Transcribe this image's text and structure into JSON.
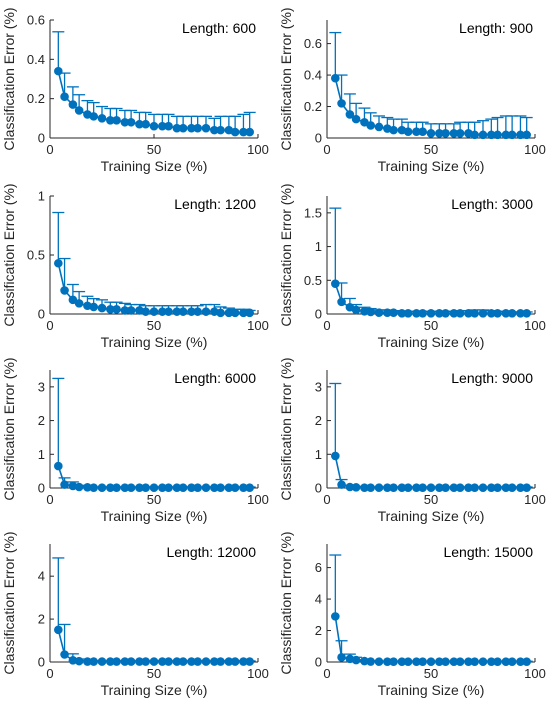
{
  "colors": {
    "series": "#0072BD",
    "axis": "#262626",
    "background": "#ffffff"
  },
  "chart_data": [
    {
      "type": "line",
      "title": "Length: 600",
      "xlabel": "Training Size (%)",
      "ylabel": "Classification Error (%)",
      "xlim": [
        0,
        100
      ],
      "ylim": [
        0,
        0.6
      ],
      "xticks": [
        0,
        50,
        100
      ],
      "xtick_labels": [
        "0",
        "50",
        "100"
      ],
      "yticks": [
        0,
        0.2,
        0.4,
        0.6
      ],
      "ytick_labels": [
        "0",
        "0.2",
        "0.4",
        "0.6"
      ],
      "grid": false,
      "x": [
        4,
        7,
        11,
        14,
        18,
        21,
        25,
        29,
        32,
        36,
        39,
        43,
        46,
        50,
        54,
        57,
        61,
        64,
        68,
        71,
        75,
        79,
        82,
        86,
        89,
        93,
        96
      ],
      "y": [
        0.34,
        0.21,
        0.17,
        0.14,
        0.12,
        0.11,
        0.1,
        0.09,
        0.09,
        0.08,
        0.08,
        0.07,
        0.07,
        0.06,
        0.06,
        0.06,
        0.05,
        0.05,
        0.05,
        0.05,
        0.05,
        0.04,
        0.04,
        0.04,
        0.03,
        0.03,
        0.03
      ],
      "error": [
        0.2,
        0.12,
        0.09,
        0.08,
        0.07,
        0.07,
        0.06,
        0.06,
        0.06,
        0.06,
        0.06,
        0.06,
        0.06,
        0.06,
        0.06,
        0.06,
        0.06,
        0.06,
        0.06,
        0.06,
        0.06,
        0.06,
        0.07,
        0.07,
        0.08,
        0.09,
        0.1
      ]
    },
    {
      "type": "line",
      "title": "Length: 900",
      "xlabel": "Training Size (%)",
      "ylabel": "Classification Error (%)",
      "xlim": [
        0,
        100
      ],
      "ylim": [
        0,
        0.75
      ],
      "xticks": [
        0,
        50,
        100
      ],
      "xtick_labels": [
        "0",
        "50",
        "100"
      ],
      "yticks": [
        0,
        0.2,
        0.4,
        0.6
      ],
      "ytick_labels": [
        "0",
        "0.2",
        "0.4",
        "0.6"
      ],
      "grid": false,
      "x": [
        4,
        7,
        11,
        14,
        18,
        21,
        25,
        29,
        32,
        36,
        39,
        43,
        46,
        50,
        54,
        57,
        61,
        64,
        68,
        71,
        75,
        79,
        82,
        86,
        89,
        93,
        96
      ],
      "y": [
        0.38,
        0.22,
        0.15,
        0.12,
        0.1,
        0.08,
        0.07,
        0.06,
        0.05,
        0.05,
        0.04,
        0.04,
        0.04,
        0.03,
        0.03,
        0.03,
        0.03,
        0.03,
        0.03,
        0.02,
        0.02,
        0.02,
        0.02,
        0.02,
        0.02,
        0.02,
        0.02
      ],
      "error": [
        0.29,
        0.18,
        0.13,
        0.1,
        0.09,
        0.08,
        0.07,
        0.07,
        0.07,
        0.07,
        0.06,
        0.06,
        0.06,
        0.06,
        0.06,
        0.06,
        0.06,
        0.07,
        0.07,
        0.08,
        0.09,
        0.1,
        0.11,
        0.12,
        0.12,
        0.12,
        0.11
      ]
    },
    {
      "type": "line",
      "title": "Length: 1200",
      "xlabel": "Training Size (%)",
      "ylabel": "Classification Error (%)",
      "xlim": [
        0,
        100
      ],
      "ylim": [
        0,
        1
      ],
      "xticks": [
        0,
        50,
        100
      ],
      "xtick_labels": [
        "0",
        "50",
        "100"
      ],
      "yticks": [
        0,
        0.5,
        1
      ],
      "ytick_labels": [
        "0",
        "0.5",
        "1"
      ],
      "grid": false,
      "x": [
        4,
        7,
        11,
        14,
        18,
        21,
        25,
        29,
        32,
        36,
        39,
        43,
        46,
        50,
        54,
        57,
        61,
        64,
        68,
        71,
        75,
        79,
        82,
        86,
        89,
        93,
        96
      ],
      "y": [
        0.43,
        0.2,
        0.12,
        0.09,
        0.07,
        0.06,
        0.05,
        0.04,
        0.04,
        0.03,
        0.03,
        0.03,
        0.02,
        0.02,
        0.02,
        0.02,
        0.02,
        0.02,
        0.02,
        0.02,
        0.02,
        0.02,
        0.01,
        0.01,
        0.01,
        0.01,
        0.01
      ],
      "error": [
        0.43,
        0.27,
        0.13,
        0.1,
        0.08,
        0.07,
        0.07,
        0.06,
        0.06,
        0.06,
        0.05,
        0.05,
        0.05,
        0.05,
        0.05,
        0.05,
        0.05,
        0.05,
        0.05,
        0.05,
        0.06,
        0.06,
        0.05,
        0.04,
        0.03,
        0.03,
        0.02
      ]
    },
    {
      "type": "line",
      "title": "Length: 3000",
      "xlabel": "Training Size (%)",
      "ylabel": "Classification Error (%)",
      "xlim": [
        0,
        100
      ],
      "ylim": [
        0,
        1.75
      ],
      "xticks": [
        0,
        50,
        100
      ],
      "xtick_labels": [
        "0",
        "50",
        "100"
      ],
      "yticks": [
        0,
        0.5,
        1,
        1.5
      ],
      "ytick_labels": [
        "0",
        "0.5",
        "1",
        "1.5"
      ],
      "grid": false,
      "x": [
        4,
        7,
        11,
        14,
        18,
        21,
        25,
        29,
        32,
        36,
        39,
        43,
        46,
        50,
        54,
        57,
        61,
        64,
        68,
        71,
        75,
        79,
        82,
        86,
        89,
        93,
        96
      ],
      "y": [
        0.45,
        0.18,
        0.1,
        0.06,
        0.04,
        0.03,
        0.02,
        0.02,
        0.02,
        0.01,
        0.01,
        0.01,
        0.01,
        0.01,
        0.01,
        0.01,
        0.01,
        0.01,
        0.01,
        0.01,
        0.01,
        0.01,
        0.01,
        0.01,
        0.01,
        0.01,
        0.01
      ],
      "error": [
        1.12,
        0.28,
        0.13,
        0.08,
        0.06,
        0.05,
        0.04,
        0.04,
        0.03,
        0.03,
        0.03,
        0.03,
        0.03,
        0.03,
        0.03,
        0.03,
        0.03,
        0.04,
        0.04,
        0.05,
        0.05,
        0.04,
        0.03,
        0.03,
        0.02,
        0.02,
        0.02
      ]
    },
    {
      "type": "line",
      "title": "Length: 6000",
      "xlabel": "Training Size (%)",
      "ylabel": "Classification Error (%)",
      "xlim": [
        0,
        100
      ],
      "ylim": [
        0,
        3.5
      ],
      "xticks": [
        0,
        50,
        100
      ],
      "xtick_labels": [
        "0",
        "50",
        "100"
      ],
      "yticks": [
        0,
        1,
        2,
        3
      ],
      "ytick_labels": [
        "0",
        "1",
        "2",
        "3"
      ],
      "grid": false,
      "x": [
        4,
        7,
        11,
        14,
        18,
        21,
        25,
        29,
        32,
        36,
        39,
        43,
        46,
        50,
        54,
        57,
        61,
        64,
        68,
        71,
        75,
        79,
        82,
        86,
        89,
        93,
        96
      ],
      "y": [
        0.65,
        0.1,
        0.06,
        0.03,
        0.02,
        0.01,
        0.01,
        0.01,
        0.01,
        0.01,
        0.01,
        0.01,
        0.01,
        0.01,
        0.01,
        0.01,
        0.01,
        0.01,
        0.01,
        0.01,
        0.01,
        0.01,
        0.01,
        0.01,
        0.01,
        0.01,
        0.01
      ],
      "error": [
        2.6,
        0.2,
        0.12,
        0.05,
        0.03,
        0.02,
        0.02,
        0.02,
        0.02,
        0.02,
        0.02,
        0.02,
        0.02,
        0.02,
        0.02,
        0.02,
        0.02,
        0.02,
        0.02,
        0.02,
        0.02,
        0.02,
        0.02,
        0.02,
        0.02,
        0.02,
        0.02
      ]
    },
    {
      "type": "line",
      "title": "Length: 9000",
      "xlabel": "Training Size (%)",
      "ylabel": "Classification Error (%)",
      "xlim": [
        0,
        100
      ],
      "ylim": [
        0,
        3.5
      ],
      "xticks": [
        0,
        50,
        100
      ],
      "xtick_labels": [
        "0",
        "50",
        "100"
      ],
      "yticks": [
        0,
        1,
        2,
        3
      ],
      "ytick_labels": [
        "0",
        "1",
        "2",
        "3"
      ],
      "grid": false,
      "x": [
        4,
        7,
        11,
        14,
        18,
        21,
        25,
        29,
        32,
        36,
        39,
        43,
        46,
        50,
        54,
        57,
        61,
        64,
        68,
        71,
        75,
        79,
        82,
        86,
        89,
        93,
        96
      ],
      "y": [
        0.95,
        0.1,
        0.03,
        0.02,
        0.01,
        0.01,
        0.01,
        0.01,
        0.01,
        0.01,
        0.01,
        0.01,
        0.01,
        0.01,
        0.01,
        0.01,
        0.01,
        0.01,
        0.01,
        0.01,
        0.01,
        0.01,
        0.01,
        0.01,
        0.01,
        0.01,
        0.01
      ],
      "error": [
        2.15,
        0.15,
        0.05,
        0.03,
        0.02,
        0.02,
        0.02,
        0.02,
        0.02,
        0.02,
        0.02,
        0.02,
        0.02,
        0.02,
        0.02,
        0.02,
        0.02,
        0.02,
        0.02,
        0.02,
        0.02,
        0.02,
        0.02,
        0.02,
        0.02,
        0.02,
        0.02
      ]
    },
    {
      "type": "line",
      "title": "Length: 12000",
      "xlabel": "Training Size (%)",
      "ylabel": "Classification Error (%)",
      "xlim": [
        0,
        100
      ],
      "ylim": [
        0,
        5.5
      ],
      "xticks": [
        0,
        50,
        100
      ],
      "xtick_labels": [
        "0",
        "50",
        "100"
      ],
      "yticks": [
        0,
        2,
        4
      ],
      "ytick_labels": [
        "0",
        "2",
        "4"
      ],
      "grid": false,
      "x": [
        4,
        7,
        11,
        14,
        18,
        21,
        25,
        29,
        32,
        36,
        39,
        43,
        46,
        50,
        54,
        57,
        61,
        64,
        68,
        71,
        75,
        79,
        82,
        86,
        89,
        93,
        96
      ],
      "y": [
        1.5,
        0.35,
        0.08,
        0.04,
        0.02,
        0.02,
        0.02,
        0.02,
        0.02,
        0.02,
        0.02,
        0.02,
        0.02,
        0.02,
        0.02,
        0.02,
        0.02,
        0.02,
        0.02,
        0.02,
        0.02,
        0.02,
        0.02,
        0.02,
        0.02,
        0.02,
        0.02
      ],
      "error": [
        3.35,
        1.4,
        0.3,
        0.1,
        0.04,
        0.03,
        0.03,
        0.03,
        0.03,
        0.03,
        0.03,
        0.03,
        0.03,
        0.03,
        0.03,
        0.03,
        0.03,
        0.03,
        0.03,
        0.03,
        0.03,
        0.03,
        0.03,
        0.03,
        0.03,
        0.03,
        0.03
      ]
    },
    {
      "type": "line",
      "title": "Length: 15000",
      "xlabel": "Training Size (%)",
      "ylabel": "Classification Error (%)",
      "xlim": [
        0,
        100
      ],
      "ylim": [
        0,
        7.5
      ],
      "xticks": [
        0,
        50,
        100
      ],
      "xtick_labels": [
        "0",
        "50",
        "100"
      ],
      "yticks": [
        0,
        2,
        4,
        6
      ],
      "ytick_labels": [
        "0",
        "2",
        "4",
        "6"
      ],
      "grid": false,
      "x": [
        4,
        7,
        11,
        14,
        18,
        21,
        25,
        29,
        32,
        36,
        39,
        43,
        46,
        50,
        54,
        57,
        61,
        64,
        68,
        71,
        75,
        79,
        82,
        86,
        89,
        93,
        96
      ],
      "y": [
        2.9,
        0.3,
        0.2,
        0.12,
        0.06,
        0.03,
        0.02,
        0.02,
        0.02,
        0.02,
        0.02,
        0.02,
        0.02,
        0.02,
        0.02,
        0.02,
        0.02,
        0.02,
        0.02,
        0.02,
        0.02,
        0.02,
        0.02,
        0.02,
        0.02,
        0.02,
        0.02
      ],
      "error": [
        3.9,
        1.05,
        0.3,
        0.18,
        0.08,
        0.05,
        0.03,
        0.03,
        0.03,
        0.03,
        0.03,
        0.03,
        0.03,
        0.03,
        0.03,
        0.03,
        0.03,
        0.03,
        0.03,
        0.03,
        0.03,
        0.03,
        0.03,
        0.03,
        0.03,
        0.03,
        0.03
      ]
    }
  ]
}
